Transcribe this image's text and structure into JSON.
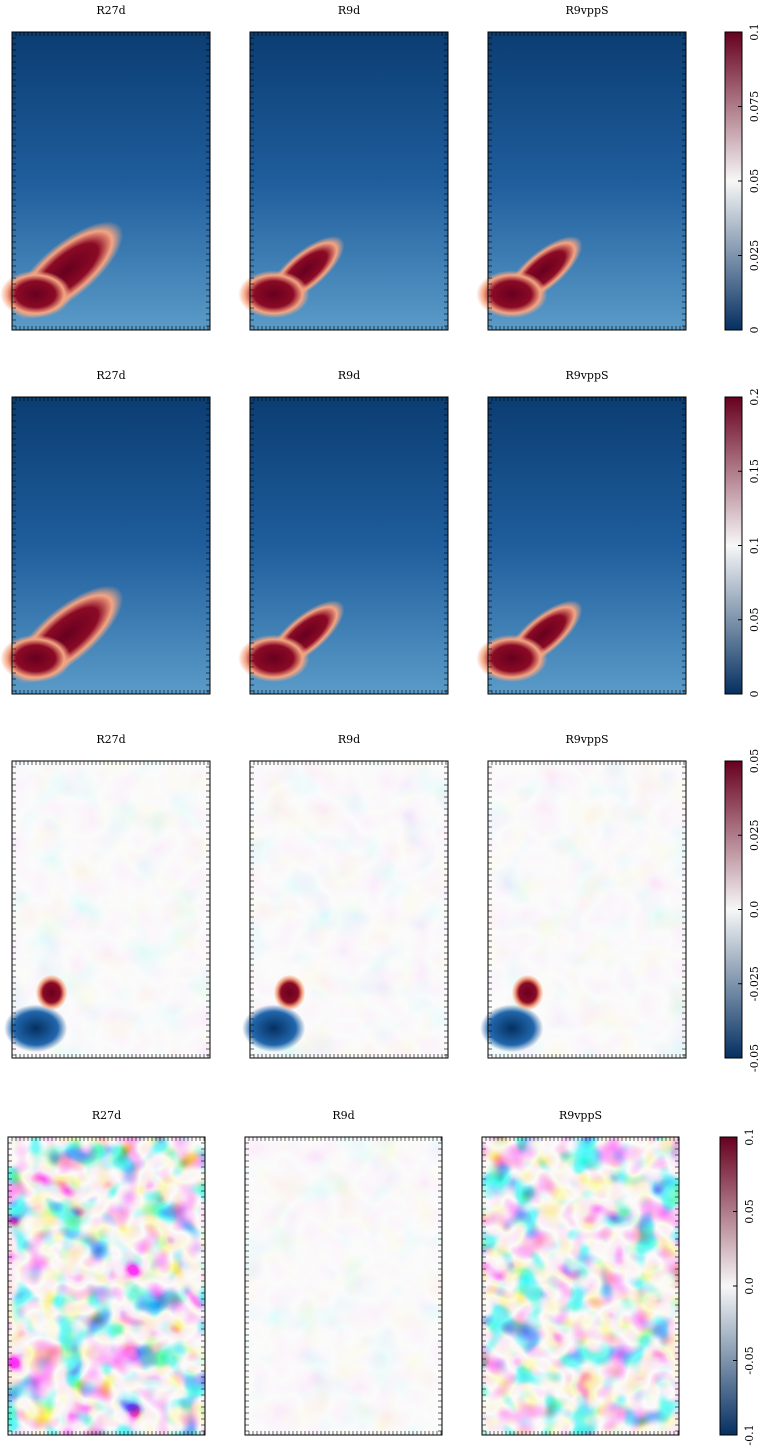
{
  "chart_data": [
    {
      "type": "heatmap",
      "panels": [
        "R27d",
        "R9d",
        "R9vppS"
      ],
      "colors": [
        "#053061",
        "#f7f7f7",
        "#67001f"
      ],
      "clim": [
        0,
        0.1
      ],
      "cticks": [
        0,
        0.025,
        0.05,
        0.075,
        0.1
      ]
    },
    {
      "type": "heatmap",
      "panels": [
        "R27d",
        "R9d",
        "R9vppS"
      ],
      "colors": [
        "#053061",
        "#f7f7f7",
        "#67001f"
      ],
      "clim": [
        0,
        0.2
      ],
      "cticks": [
        0,
        0.05,
        0.1,
        0.15,
        0.2
      ]
    },
    {
      "type": "heatmap",
      "panels": [
        "R27d",
        "R9d",
        "R9vppS"
      ],
      "colors": [
        "#053061",
        "#f7f7f7",
        "#67001f"
      ],
      "clim": [
        -0.05,
        0.05
      ],
      "cticks": [
        -0.05,
        -0.025,
        {
          "value": 0,
          "label": "0.0"
        },
        0.025,
        0.05
      ]
    },
    {
      "type": "heatmap",
      "panels": [
        "R27d",
        "R9d",
        "R9vppS"
      ],
      "colors": [
        "#053061",
        "#f7f7f7",
        "#67001f"
      ],
      "clim": [
        -0.1,
        0.1
      ],
      "cticks": [
        -0.1,
        -0.05,
        {
          "value": 0,
          "label": "0.0"
        },
        0.05,
        0.1
      ]
    }
  ]
}
